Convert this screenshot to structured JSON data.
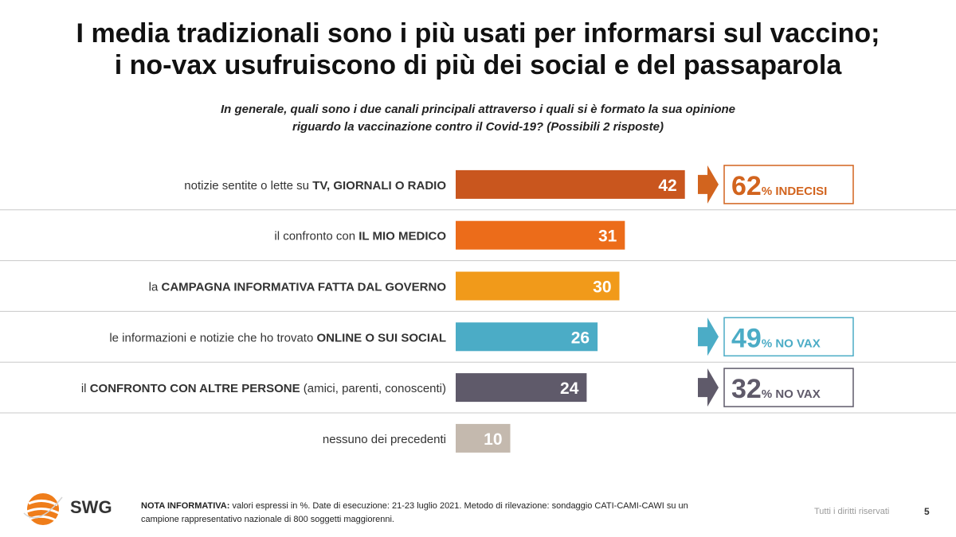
{
  "title": {
    "line1": "I media tradizionali sono i più usati per informarsi sul vaccino;",
    "line2": "i no-vax usufruiscono di più dei social e del passaparola"
  },
  "question": {
    "line1": "In generale, quali sono i due canali principali attraverso i quali si è formato la sua opinione",
    "line2": "riguardo la vaccinazione contro il Covid-19? (Possibili 2 risposte)"
  },
  "chart_data": {
    "type": "bar",
    "orientation": "horizontal",
    "grid": false,
    "categories": [
      {
        "pre": "notizie sentite o lette su ",
        "bold": "TV, GIORNALI O RADIO",
        "post": ""
      },
      {
        "pre": "il confronto con ",
        "bold": "IL MIO MEDICO",
        "post": ""
      },
      {
        "pre": "la ",
        "bold": "CAMPAGNA INFORMATIVA FATTA DAL GOVERNO",
        "post": ""
      },
      {
        "pre": "le informazioni e notizie che ho trovato ",
        "bold": "ONLINE O SUI SOCIAL",
        "post": ""
      },
      {
        "pre": "il ",
        "bold": "CONFRONTO CON ALTRE PERSONE",
        "post": " (amici, parenti, conoscenti)"
      },
      {
        "pre": "nessuno dei precedenti",
        "bold": "",
        "post": ""
      }
    ],
    "values": [
      42,
      31,
      30,
      26,
      24,
      10
    ],
    "colors": [
      "#c9561e",
      "#ec6c1a",
      "#f19a1a",
      "#4bacc6",
      "#5f5a6a",
      "#c4b9ae"
    ],
    "callouts": [
      {
        "row": 0,
        "value": "62",
        "suffix": "% INDECISI",
        "color": "#d2641e",
        "arrow_color": "#d2641e"
      },
      {
        "row": 3,
        "value": "49",
        "suffix": "% NO VAX",
        "color": "#4bacc6",
        "arrow_color": "#4bacc6"
      },
      {
        "row": 4,
        "value": "32",
        "suffix": "% NO VAX",
        "color": "#5f5a6a",
        "arrow_color": "#5f5a6a"
      }
    ]
  },
  "footer": {
    "note_label": "NOTA INFORMATIVA:",
    "note_line1": " valori espressi in %. Date di esecuzione: 21-23  luglio 2021. Metodo di rilevazione: sondaggio CATI-CAMI-CAWI su un",
    "note_line2": "campione rappresentativo nazionale di 800 soggetti maggiorenni.",
    "rights": "Tutti i diritti riservati",
    "page": "5",
    "logo_text": "SWG"
  }
}
